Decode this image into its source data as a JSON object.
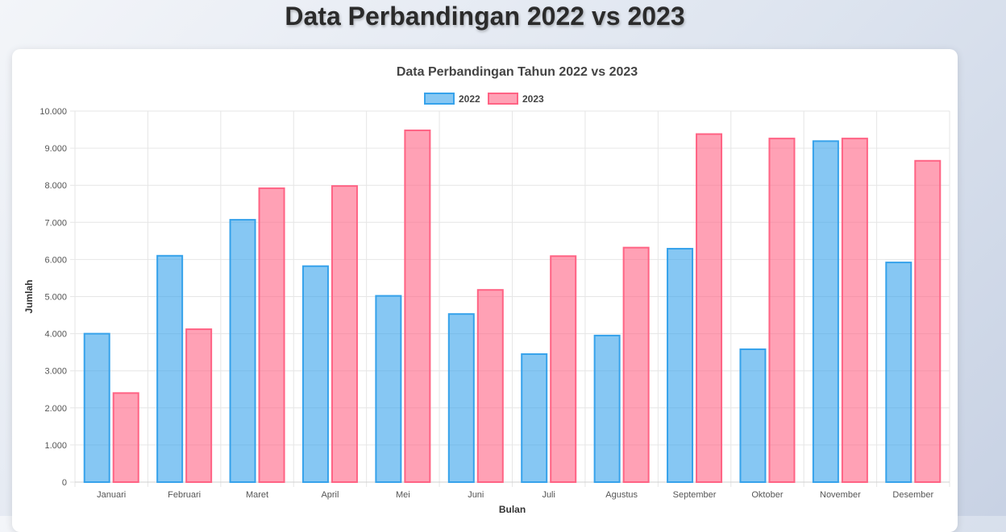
{
  "page": {
    "title": "Data Perbandingan 2022 vs 2023"
  },
  "colors": {
    "series_2022_fill": "rgba(54,162,235,0.6)",
    "series_2022_stroke": "#36a2eb",
    "series_2023_fill": "rgba(255,99,132,0.6)",
    "series_2023_stroke": "#ff6384",
    "grid": "#e6e6e6"
  },
  "chart_data": {
    "type": "bar",
    "title": "Data Perbandingan Tahun 2022 vs 2023",
    "xlabel": "Bulan",
    "ylabel": "Jumlah",
    "legend": "top",
    "grid": true,
    "ylim": [
      0,
      10000
    ],
    "yticks": [
      "0",
      "1.000",
      "2.000",
      "3.000",
      "4.000",
      "5.000",
      "6.000",
      "7.000",
      "8.000",
      "9.000",
      "10.000"
    ],
    "categories": [
      "Januari",
      "Februari",
      "Maret",
      "April",
      "Mei",
      "Juni",
      "Juli",
      "Agustus",
      "September",
      "Oktober",
      "November",
      "Desember"
    ],
    "series": [
      {
        "name": "2022",
        "values": [
          4000,
          6100,
          7070,
          5820,
          5020,
          4530,
          3450,
          3950,
          6290,
          3580,
          9190,
          5920
        ]
      },
      {
        "name": "2023",
        "values": [
          2400,
          4120,
          7920,
          7980,
          9480,
          5180,
          6090,
          6320,
          9380,
          9260,
          9260,
          8660
        ]
      }
    ]
  }
}
